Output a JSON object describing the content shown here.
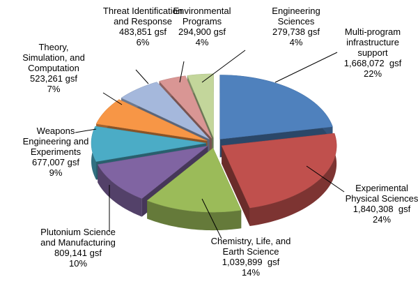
{
  "chart_data": {
    "type": "pie3d",
    "categories": [
      "Multi-program infrastructure support",
      "Experimental Physical Sciences",
      "Chemistry, Life, and Earth Science",
      "Plutonium Science and Manufacturing",
      "Weapons Engineering and Experiments",
      "Theory, Simulation, and Computation",
      "Threat Identification and Response",
      "Environmental Programs",
      "Engineering Sciences"
    ],
    "values": [
      1668072,
      1840308,
      1039899,
      809141,
      677007,
      523261,
      483851,
      294900,
      279738
    ],
    "value_labels": [
      "1,668,072  gsf",
      "1,840,308  gsf",
      "1,039,899  gsf",
      "809,141 gsf",
      "677,007 gsf",
      "523,261 gsf",
      "483,851 gsf",
      "294,900 gsf",
      "279,738 gsf"
    ],
    "percents": [
      22,
      24,
      14,
      10,
      9,
      7,
      6,
      4,
      4
    ],
    "percent_labels": [
      "22%",
      "24%",
      "14%",
      "10%",
      "9%",
      "7%",
      "6%",
      "4%",
      "4%"
    ],
    "colors": [
      "#4f81bd",
      "#c0504d",
      "#9bbb59",
      "#8064a2",
      "#4bacc6",
      "#f79646",
      "#a5b8dc",
      "#d99694",
      "#c3d69b"
    ]
  }
}
